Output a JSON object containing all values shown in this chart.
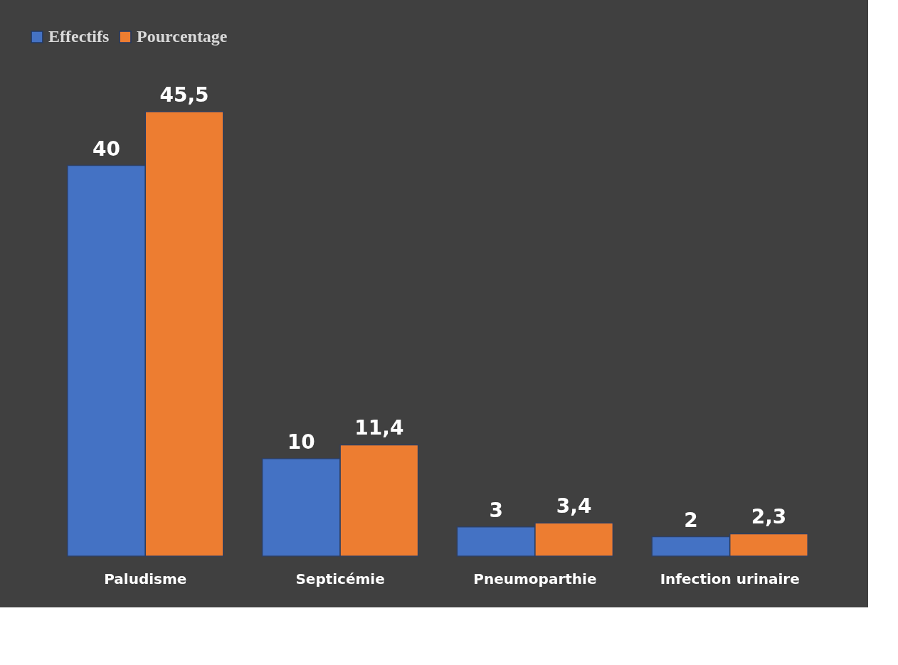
{
  "chart_data": {
    "type": "bar",
    "categories": [
      "Paludisme",
      "Septicémie",
      "Pneumoparthie",
      "Infection urinaire"
    ],
    "series": [
      {
        "name": "Effectifs",
        "color": "#4472c4",
        "values": [
          40,
          10,
          3,
          2
        ],
        "value_labels": [
          "40",
          "10",
          "3",
          "2"
        ]
      },
      {
        "name": "Pourcentage",
        "color": "#ed7d31",
        "values": [
          45.5,
          11.4,
          3.4,
          2.3
        ],
        "value_labels": [
          "45,5",
          "11,4",
          "3,4",
          "2,3"
        ]
      }
    ],
    "legend": "top",
    "grid": false
  }
}
